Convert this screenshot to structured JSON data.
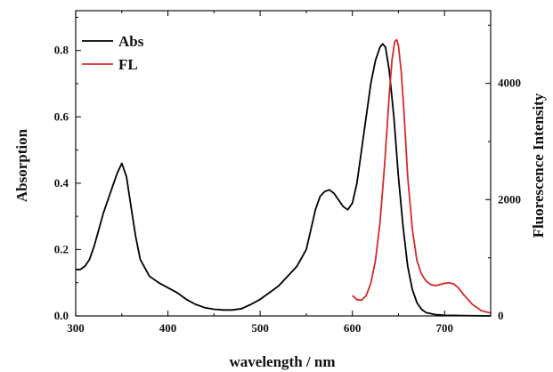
{
  "chart_data": {
    "type": "line",
    "title": "",
    "xlabel": "wavelength / nm",
    "ylabel_left": "Absorption",
    "ylabel_right": "Fluorescence Intensity",
    "xlim": [
      300,
      750
    ],
    "ylim_left": [
      0,
      0.92
    ],
    "ylim_right": [
      0,
      5250
    ],
    "x_ticks": [
      300,
      400,
      500,
      600,
      700
    ],
    "y_ticks_left": [
      0.0,
      0.2,
      0.4,
      0.6,
      0.8
    ],
    "y_tick_labels_left": [
      "0.0",
      "0.2",
      "0.4",
      "0.6",
      "0.8"
    ],
    "y_ticks_right": [
      0,
      2000,
      4000
    ],
    "grid": false,
    "legend_position": "top-left",
    "series": [
      {
        "name": "Abs",
        "axis": "left",
        "color": "#000000",
        "x": [
          300,
          305,
          310,
          315,
          320,
          325,
          330,
          335,
          340,
          345,
          350,
          355,
          360,
          365,
          370,
          380,
          390,
          400,
          410,
          420,
          430,
          440,
          450,
          460,
          470,
          480,
          490,
          500,
          510,
          520,
          530,
          540,
          550,
          555,
          560,
          565,
          570,
          575,
          580,
          585,
          590,
          595,
          600,
          605,
          610,
          615,
          620,
          625,
          630,
          633,
          636,
          640,
          645,
          650,
          655,
          660,
          665,
          670,
          675,
          680,
          690,
          700,
          720,
          750
        ],
        "y": [
          0.14,
          0.14,
          0.15,
          0.17,
          0.21,
          0.26,
          0.31,
          0.35,
          0.39,
          0.43,
          0.46,
          0.42,
          0.33,
          0.24,
          0.17,
          0.12,
          0.1,
          0.085,
          0.07,
          0.05,
          0.035,
          0.025,
          0.02,
          0.018,
          0.018,
          0.022,
          0.035,
          0.05,
          0.07,
          0.09,
          0.12,
          0.15,
          0.2,
          0.26,
          0.32,
          0.36,
          0.375,
          0.38,
          0.37,
          0.35,
          0.33,
          0.32,
          0.34,
          0.4,
          0.5,
          0.6,
          0.7,
          0.77,
          0.81,
          0.82,
          0.81,
          0.74,
          0.6,
          0.42,
          0.27,
          0.15,
          0.08,
          0.04,
          0.02,
          0.01,
          0.004,
          0.002,
          0.001,
          0.0
        ]
      },
      {
        "name": "FL",
        "axis": "right",
        "color": "#d42a2a",
        "x": [
          600,
          605,
          610,
          615,
          620,
          625,
          630,
          635,
          640,
          643,
          646,
          648,
          650,
          653,
          656,
          660,
          665,
          670,
          675,
          680,
          685,
          690,
          695,
          700,
          705,
          710,
          715,
          720,
          730,
          740,
          750
        ],
        "y": [
          350,
          280,
          270,
          350,
          560,
          950,
          1600,
          2600,
          3800,
          4400,
          4720,
          4750,
          4650,
          4200,
          3500,
          2400,
          1500,
          950,
          720,
          600,
          540,
          520,
          540,
          560,
          570,
          550,
          480,
          380,
          200,
          90,
          50
        ]
      }
    ]
  }
}
